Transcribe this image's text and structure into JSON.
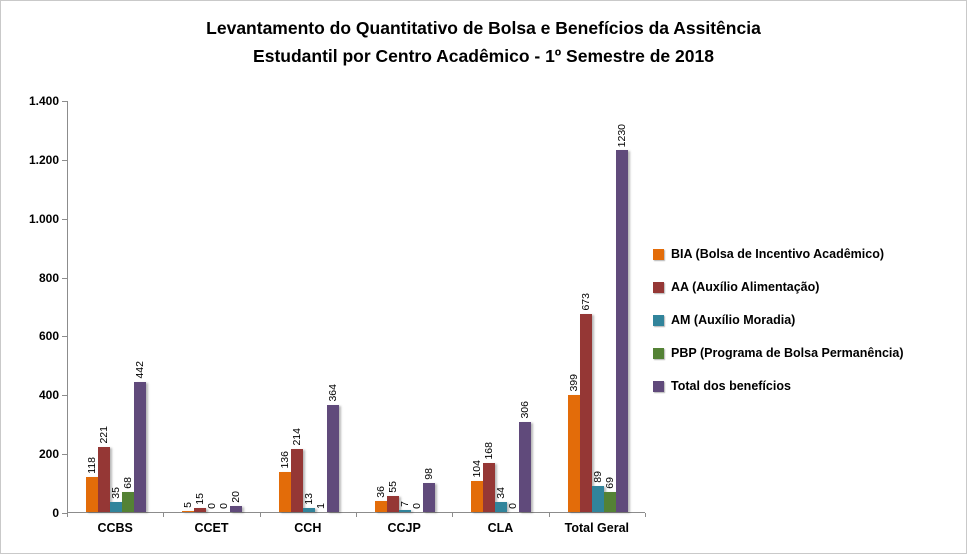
{
  "title_line1": "Levantamento do Quantitativo de Bolsa e Benefícios da Assitência",
  "title_line2": "Estudantil  por Centro Acadêmico - 1º Semestre de 2018",
  "chart_data": {
    "type": "bar",
    "title": "Levantamento do Quantitativo de Bolsa e Benefícios da Assitência Estudantil por Centro Acadêmico - 1º Semestre de 2018",
    "categories": [
      "CCBS",
      "CCET",
      "CCH",
      "CCJP",
      "CLA",
      "Total Geral"
    ],
    "series": [
      {
        "name": "BIA (Bolsa de Incentivo Acadêmico)",
        "color": "#E36C09",
        "values": [
          118,
          5,
          136,
          36,
          104,
          399
        ]
      },
      {
        "name": "AA (Auxílio Alimentação)",
        "color": "#953735",
        "values": [
          221,
          15,
          214,
          55,
          168,
          673
        ]
      },
      {
        "name": "AM (Auxílio Moradia)",
        "color": "#31849B",
        "values": [
          35,
          0,
          13,
          7,
          34,
          89
        ]
      },
      {
        "name": "PBP (Programa de Bolsa Permanência)",
        "color": "#548235",
        "values": [
          68,
          0,
          1,
          0,
          0,
          69
        ]
      },
      {
        "name": "Total dos benefícios",
        "color": "#604A7B",
        "values": [
          442,
          20,
          364,
          98,
          306,
          1230
        ]
      }
    ],
    "ylim": [
      0,
      1400
    ],
    "ytick_step": 200,
    "ytick_labels": [
      "0",
      "200",
      "400",
      "600",
      "800",
      "1.000",
      "1.200",
      "1.400"
    ],
    "grid": false,
    "legend_position": "right",
    "axis_color": "#8c8c8c",
    "background_color": "#ffffff"
  }
}
